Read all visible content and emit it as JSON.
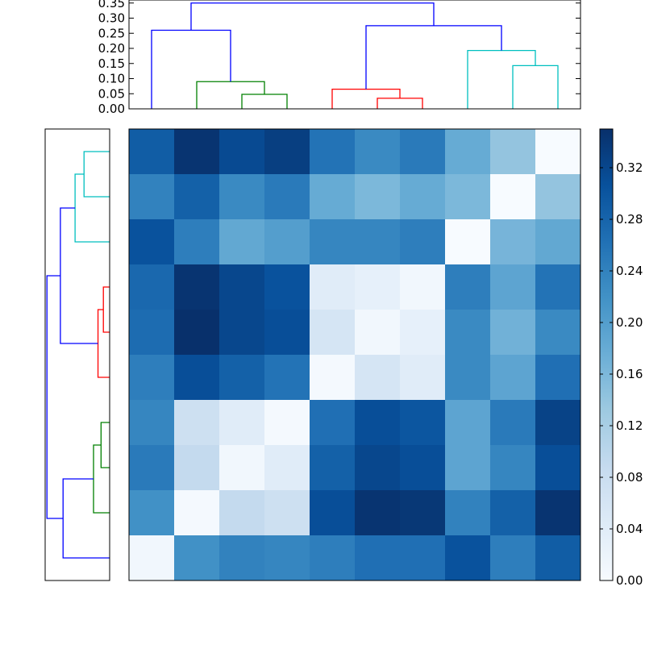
{
  "chart_data": {
    "type": "heatmap",
    "subtype": "clustered-heatmap-with-dendrograms",
    "colormap": "Blues",
    "colormap_stops": [
      "#f7fbff",
      "#deebf7",
      "#c6dbef",
      "#9ecae1",
      "#6baed6",
      "#4292c6",
      "#2171b5",
      "#08519c",
      "#08306b"
    ],
    "matrix_rows": [
      [
        0.29,
        0.345,
        0.315,
        0.33,
        0.26,
        0.23,
        0.25,
        0.18,
        0.14,
        0.0
      ],
      [
        0.24,
        0.285,
        0.23,
        0.25,
        0.18,
        0.16,
        0.18,
        0.16,
        0.0,
        0.14
      ],
      [
        0.305,
        0.245,
        0.185,
        0.2,
        0.235,
        0.235,
        0.245,
        0.0,
        0.165,
        0.185
      ],
      [
        0.275,
        0.345,
        0.32,
        0.305,
        0.04,
        0.03,
        0.01,
        0.245,
        0.19,
        0.26
      ],
      [
        0.27,
        0.35,
        0.32,
        0.31,
        0.06,
        0.01,
        0.03,
        0.23,
        0.17,
        0.23
      ],
      [
        0.245,
        0.31,
        0.285,
        0.26,
        0.005,
        0.06,
        0.04,
        0.23,
        0.19,
        0.265
      ],
      [
        0.235,
        0.075,
        0.04,
        0.005,
        0.265,
        0.31,
        0.3,
        0.19,
        0.25,
        0.325
      ],
      [
        0.25,
        0.09,
        0.01,
        0.04,
        0.285,
        0.32,
        0.31,
        0.19,
        0.235,
        0.31
      ],
      [
        0.22,
        0.005,
        0.09,
        0.075,
        0.31,
        0.345,
        0.34,
        0.24,
        0.285,
        0.345
      ],
      [
        0.01,
        0.22,
        0.24,
        0.235,
        0.245,
        0.265,
        0.265,
        0.305,
        0.245,
        0.29
      ]
    ],
    "colorbar": {
      "range": [
        0.0,
        0.35
      ],
      "ticks": [
        "0.00",
        "0.04",
        "0.08",
        "0.12",
        "0.16",
        "0.20",
        "0.24",
        "0.28",
        "0.32"
      ]
    },
    "top_dendrogram": {
      "yticks": [
        "0.00",
        "0.05",
        "0.10",
        "0.15",
        "0.20",
        "0.25",
        "0.30",
        "0.35"
      ],
      "ylim": [
        0,
        0.36
      ],
      "links": [
        {
          "left": 2.5,
          "right": 3.5,
          "h": 0.048,
          "lh": 0,
          "rh": 0,
          "color": "#008000"
        },
        {
          "left": 1.5,
          "right": 3.0,
          "h": 0.09,
          "lh": 0,
          "rh": 0.048,
          "color": "#008000"
        },
        {
          "left": 0.5,
          "right": 2.25,
          "h": 0.26,
          "lh": 0,
          "rh": 0.09,
          "color": "#0000ff"
        },
        {
          "left": 5.5,
          "right": 6.5,
          "h": 0.035,
          "lh": 0,
          "rh": 0,
          "color": "#ff0000"
        },
        {
          "left": 4.5,
          "right": 6.0,
          "h": 0.065,
          "lh": 0,
          "rh": 0.035,
          "color": "#ff0000"
        },
        {
          "left": 8.5,
          "right": 9.5,
          "h": 0.143,
          "lh": 0,
          "rh": 0,
          "color": "#00bfbf"
        },
        {
          "left": 7.5,
          "right": 9.0,
          "h": 0.193,
          "lh": 0,
          "rh": 0.143,
          "color": "#00bfbf"
        },
        {
          "left": 5.25,
          "right": 8.25,
          "h": 0.275,
          "lh": 0.065,
          "rh": 0.193,
          "color": "#0000ff"
        },
        {
          "left": 1.375,
          "right": 6.75,
          "h": 0.35,
          "lh": 0.26,
          "rh": 0.275,
          "color": "#0000ff"
        }
      ]
    },
    "left_dendrogram": {
      "xlim": [
        0.36,
        0
      ],
      "links": [
        {
          "top": 0.5,
          "bottom": 1.5,
          "h": 0.143,
          "th": 0,
          "bh": 0,
          "color": "#00bfbf"
        },
        {
          "top": 1.0,
          "bottom": 2.5,
          "h": 0.193,
          "th": 0.143,
          "bh": 0,
          "color": "#00bfbf"
        },
        {
          "top": 3.5,
          "bottom": 4.5,
          "h": 0.035,
          "th": 0,
          "bh": 0,
          "color": "#ff0000"
        },
        {
          "top": 4.0,
          "bottom": 5.5,
          "h": 0.065,
          "th": 0.035,
          "bh": 0,
          "color": "#ff0000"
        },
        {
          "top": 1.75,
          "bottom": 4.75,
          "h": 0.275,
          "th": 0.193,
          "bh": 0.065,
          "color": "#0000ff"
        },
        {
          "top": 6.5,
          "bottom": 7.5,
          "h": 0.048,
          "th": 0,
          "bh": 0,
          "color": "#008000"
        },
        {
          "top": 7.0,
          "bottom": 8.5,
          "h": 0.09,
          "th": 0.048,
          "bh": 0,
          "color": "#008000"
        },
        {
          "top": 7.75,
          "bottom": 9.5,
          "h": 0.26,
          "th": 0.09,
          "bh": 0,
          "color": "#0000ff"
        },
        {
          "top": 3.25,
          "bottom": 8.625,
          "h": 0.35,
          "th": 0.275,
          "bh": 0.26,
          "color": "#0000ff"
        }
      ]
    }
  }
}
